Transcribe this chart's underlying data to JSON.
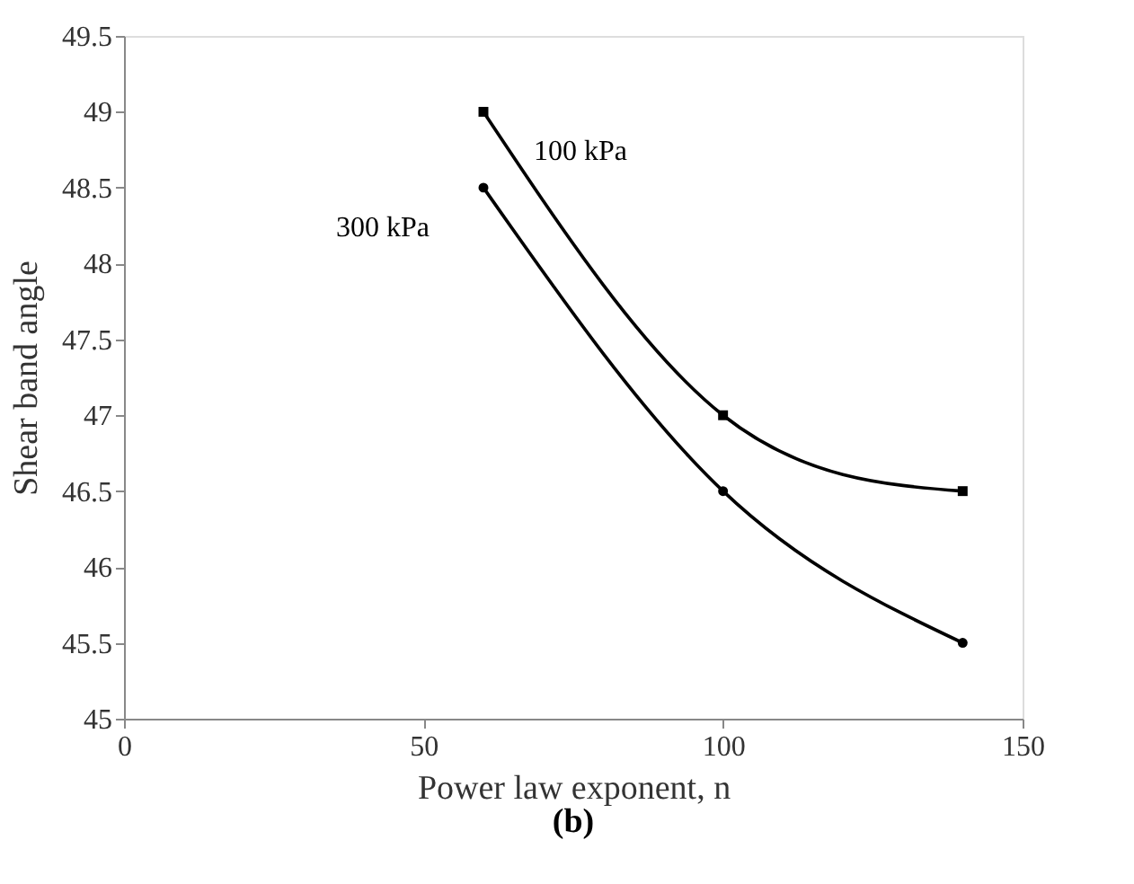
{
  "chart_data": {
    "type": "line",
    "xlabel": "Power law exponent, n",
    "ylabel": "Shear band angle",
    "annotations": [
      "(b)"
    ],
    "xlim": [
      0,
      150
    ],
    "xticks": [
      0,
      50,
      100,
      150
    ],
    "ylim": [
      45,
      49.5
    ],
    "yticks": [
      45,
      45.5,
      46,
      46.5,
      47,
      47.5,
      48,
      48.5,
      49,
      49.5
    ],
    "grid": false,
    "series": [
      {
        "name": "100 kPa",
        "color": "#000000",
        "marker": "square",
        "x": [
          60,
          100,
          140
        ],
        "values": [
          49,
          47,
          46.5
        ]
      },
      {
        "name": "300 kPa",
        "color": "#000000",
        "marker": "circle",
        "x": [
          60,
          100,
          140
        ],
        "values": [
          48.5,
          46.5,
          45.5
        ]
      }
    ]
  }
}
